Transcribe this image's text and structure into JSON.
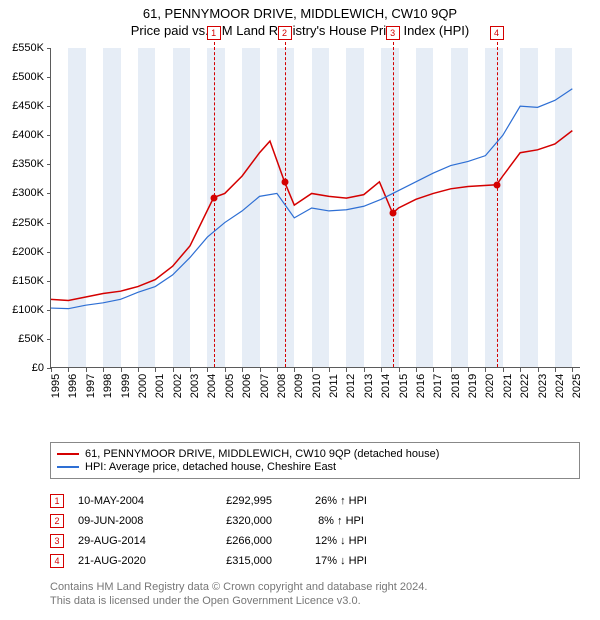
{
  "title_main": "61, PENNYMOOR DRIVE, MIDDLEWICH, CW10 9QP",
  "title_sub": "Price paid vs. HM Land Registry's House Price Index (HPI)",
  "chart": {
    "type": "line",
    "x_range": [
      1995,
      2025.5
    ],
    "y_range": [
      0,
      550000
    ],
    "y_ticks": [
      0,
      50000,
      100000,
      150000,
      200000,
      250000,
      300000,
      350000,
      400000,
      450000,
      500000,
      550000
    ],
    "y_tick_labels": [
      "£0",
      "£50K",
      "£100K",
      "£150K",
      "£200K",
      "£250K",
      "£300K",
      "£350K",
      "£400K",
      "£450K",
      "£500K",
      "£550K"
    ],
    "x_ticks": [
      1995,
      1996,
      1997,
      1998,
      1999,
      2000,
      2001,
      2002,
      2003,
      2004,
      2005,
      2006,
      2007,
      2008,
      2009,
      2010,
      2011,
      2012,
      2013,
      2014,
      2015,
      2016,
      2017,
      2018,
      2019,
      2020,
      2021,
      2022,
      2023,
      2024,
      2025
    ],
    "band_color": "#e6edf6",
    "background_color": "#ffffff",
    "series": [
      {
        "name": "property",
        "color": "#d40000",
        "width": 1.5,
        "legend_label": "61, PENNYMOOR DRIVE, MIDDLEWICH, CW10 9QP (detached house)",
        "points": [
          [
            1995,
            118000
          ],
          [
            1996,
            116000
          ],
          [
            1997,
            122000
          ],
          [
            1998,
            128000
          ],
          [
            1999,
            132000
          ],
          [
            2000,
            140000
          ],
          [
            2001,
            152000
          ],
          [
            2002,
            175000
          ],
          [
            2003,
            210000
          ],
          [
            2004.36,
            292995
          ],
          [
            2005,
            300000
          ],
          [
            2006,
            330000
          ],
          [
            2007,
            370000
          ],
          [
            2007.6,
            390000
          ],
          [
            2008.44,
            320000
          ],
          [
            2009,
            280000
          ],
          [
            2010,
            300000
          ],
          [
            2011,
            295000
          ],
          [
            2012,
            292000
          ],
          [
            2013,
            298000
          ],
          [
            2013.9,
            320000
          ],
          [
            2014.66,
            266000
          ],
          [
            2015,
            275000
          ],
          [
            2016,
            290000
          ],
          [
            2017,
            300000
          ],
          [
            2018,
            308000
          ],
          [
            2019,
            312000
          ],
          [
            2020.64,
            315000
          ],
          [
            2021,
            330000
          ],
          [
            2022,
            370000
          ],
          [
            2023,
            375000
          ],
          [
            2024,
            385000
          ],
          [
            2025,
            408000
          ]
        ],
        "markers": [
          {
            "x": 2004.36,
            "y": 292995
          },
          {
            "x": 2008.44,
            "y": 320000
          },
          {
            "x": 2014.66,
            "y": 266000
          },
          {
            "x": 2020.64,
            "y": 315000
          }
        ]
      },
      {
        "name": "hpi",
        "color": "#2e6fd4",
        "width": 1.2,
        "legend_label": "HPI: Average price, detached house, Cheshire East",
        "points": [
          [
            1995,
            103000
          ],
          [
            1996,
            102000
          ],
          [
            1997,
            108000
          ],
          [
            1998,
            112000
          ],
          [
            1999,
            118000
          ],
          [
            2000,
            130000
          ],
          [
            2001,
            140000
          ],
          [
            2002,
            160000
          ],
          [
            2003,
            190000
          ],
          [
            2004,
            225000
          ],
          [
            2005,
            250000
          ],
          [
            2006,
            270000
          ],
          [
            2007,
            295000
          ],
          [
            2008,
            300000
          ],
          [
            2009,
            258000
          ],
          [
            2010,
            275000
          ],
          [
            2011,
            270000
          ],
          [
            2012,
            272000
          ],
          [
            2013,
            278000
          ],
          [
            2014,
            290000
          ],
          [
            2015,
            305000
          ],
          [
            2016,
            320000
          ],
          [
            2017,
            335000
          ],
          [
            2018,
            348000
          ],
          [
            2019,
            355000
          ],
          [
            2020,
            365000
          ],
          [
            2021,
            400000
          ],
          [
            2022,
            450000
          ],
          [
            2023,
            448000
          ],
          [
            2024,
            460000
          ],
          [
            2025,
            480000
          ]
        ]
      }
    ],
    "sale_events": [
      {
        "n": "1",
        "x": 2004.36,
        "color": "#d40000"
      },
      {
        "n": "2",
        "x": 2008.44,
        "color": "#d40000"
      },
      {
        "n": "3",
        "x": 2014.66,
        "color": "#d40000"
      },
      {
        "n": "4",
        "x": 2020.64,
        "color": "#d40000"
      }
    ]
  },
  "sales": [
    {
      "n": "1",
      "date": "10-MAY-2004",
      "price": "£292,995",
      "diff": "26% ↑ HPI",
      "color": "#d40000"
    },
    {
      "n": "2",
      "date": "09-JUN-2008",
      "price": "£320,000",
      "diff": "8% ↑ HPI",
      "color": "#d40000"
    },
    {
      "n": "3",
      "date": "29-AUG-2014",
      "price": "£266,000",
      "diff": "12% ↓ HPI",
      "color": "#d40000"
    },
    {
      "n": "4",
      "date": "21-AUG-2020",
      "price": "£315,000",
      "diff": "17% ↓ HPI",
      "color": "#d40000"
    }
  ],
  "attribution_line1": "Contains HM Land Registry data © Crown copyright and database right 2024.",
  "attribution_line2": "This data is licensed under the Open Government Licence v3.0."
}
